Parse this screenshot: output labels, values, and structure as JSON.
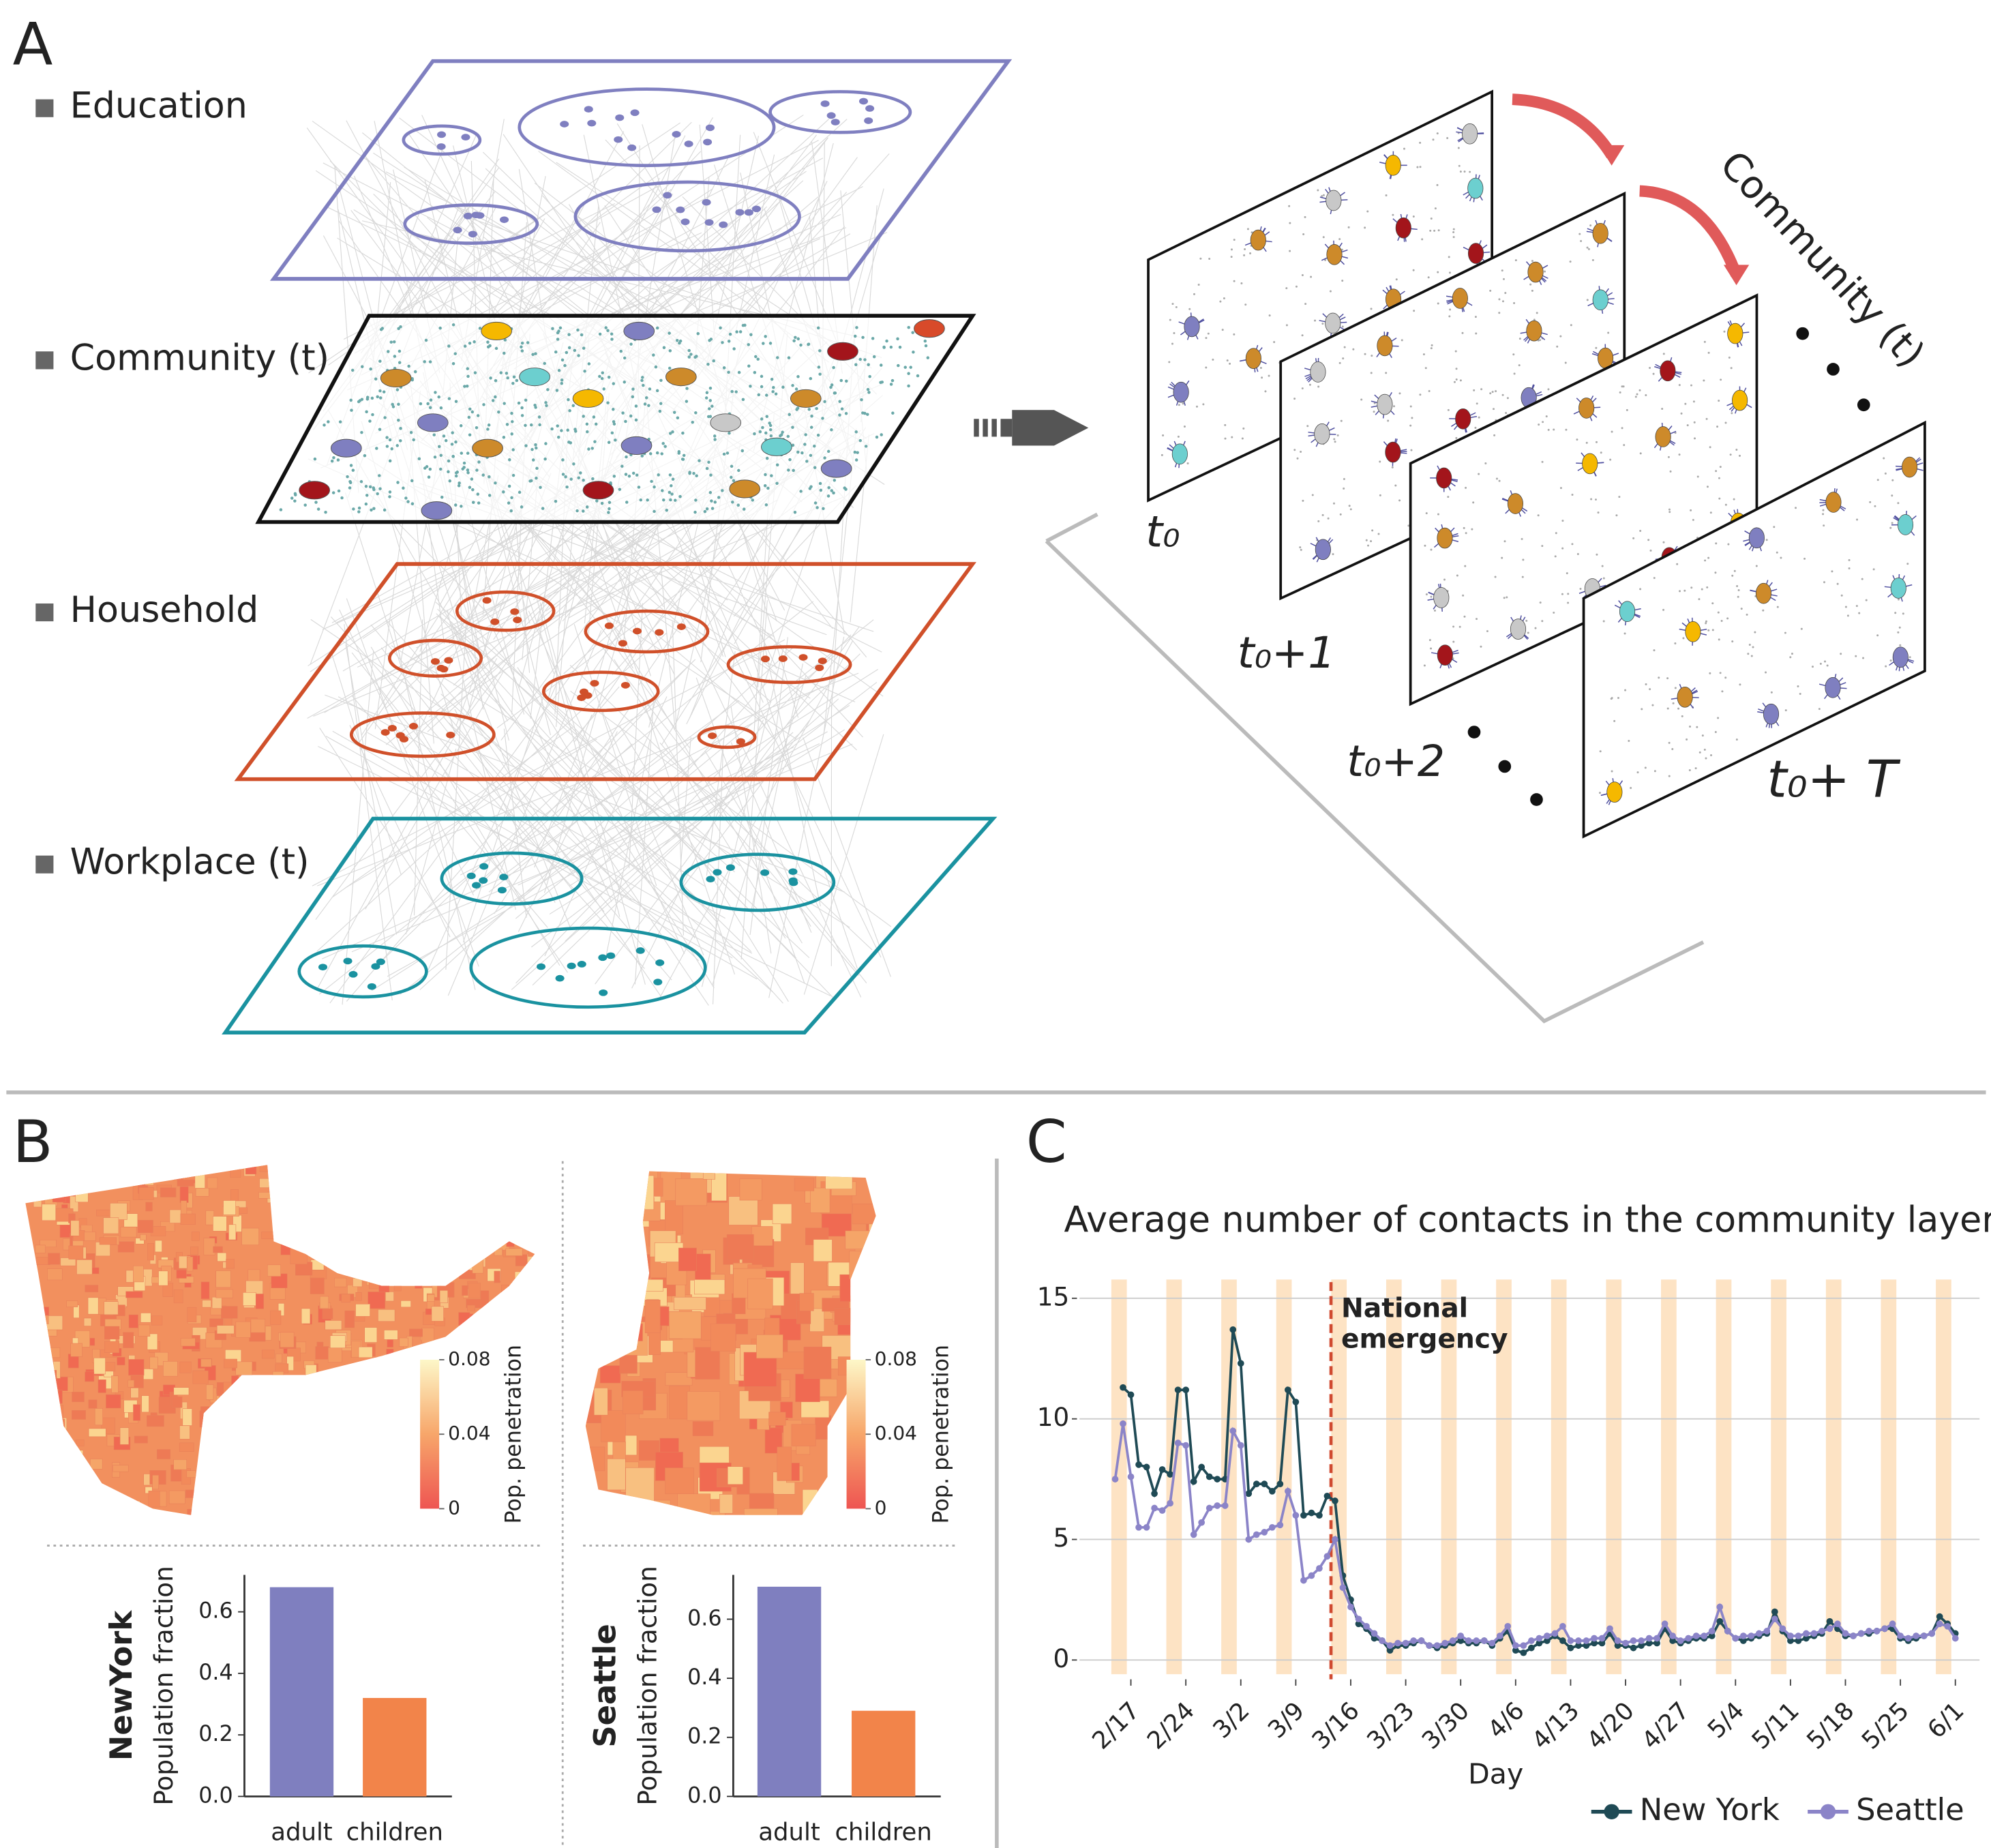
{
  "panels": {
    "a": "A",
    "b": "B",
    "c": "C"
  },
  "layers": [
    "Education",
    "Community (t)",
    "Household",
    "Workplace (t)"
  ],
  "timeline": {
    "title": "Community (t)",
    "frames": [
      "t₀",
      "t₀+1",
      "t₀+2",
      "t₀+ T"
    ]
  },
  "maps": [
    {
      "colorbar_label": "Pop. penetration",
      "range": [
        0,
        0.08
      ],
      "ticks": [
        0,
        0.04,
        0.08
      ]
    },
    {
      "colorbar_label": "Pop. penetration",
      "range": [
        0,
        0.08
      ],
      "ticks": [
        0,
        0.04,
        0.08
      ]
    }
  ],
  "chart_data": [
    {
      "type": "bar",
      "title": "NewYork",
      "ylabel": "Population fraction",
      "categories": [
        "adult",
        "children"
      ],
      "values": [
        0.68,
        0.32
      ],
      "colors": [
        "#7f7fbf",
        "#f2844a"
      ],
      "ylim": [
        0,
        0.72
      ],
      "yticks": [
        {
          "value": 0,
          "label": "0.0"
        },
        0.2,
        0.4,
        0.6
      ]
    },
    {
      "type": "bar",
      "title": "Seattle",
      "ylabel": "Population fraction",
      "categories": [
        "adult",
        "children"
      ],
      "values": [
        0.71,
        0.29
      ],
      "colors": [
        "#7f7fbf",
        "#f2844a"
      ],
      "ylim": [
        0,
        0.75
      ],
      "yticks": [
        {
          "value": 0,
          "label": "0.0"
        },
        0.2,
        0.4,
        0.6
      ]
    },
    {
      "type": "line",
      "title": "Average number of contacts in the community layer",
      "xlabel": "Day",
      "x": [
        "2/15",
        "2/16",
        "2/17",
        "2/18",
        "2/19",
        "2/20",
        "2/21",
        "2/22",
        "2/23",
        "2/24",
        "2/25",
        "2/26",
        "2/27",
        "2/28",
        "2/29",
        "3/1",
        "3/2",
        "3/3",
        "3/4",
        "3/5",
        "3/6",
        "3/7",
        "3/8",
        "3/9",
        "3/10",
        "3/11",
        "3/12",
        "3/13",
        "3/14",
        "3/15",
        "3/16",
        "3/17",
        "3/18",
        "3/19",
        "3/20",
        "3/21",
        "3/22",
        "3/23",
        "3/24",
        "3/25",
        "3/26",
        "3/27",
        "3/28",
        "3/29",
        "3/30",
        "3/31",
        "4/1",
        "4/2",
        "4/3",
        "4/4",
        "4/5",
        "4/6",
        "4/7",
        "4/8",
        "4/9",
        "4/10",
        "4/11",
        "4/12",
        "4/13",
        "4/14",
        "4/15",
        "4/16",
        "4/17",
        "4/18",
        "4/19",
        "4/20",
        "4/21",
        "4/22",
        "4/23",
        "4/24",
        "4/25",
        "4/26",
        "4/27",
        "4/28",
        "4/29",
        "4/30",
        "5/1",
        "5/2",
        "5/3",
        "5/4",
        "5/5",
        "5/6",
        "5/7",
        "5/8",
        "5/9",
        "5/10",
        "5/11",
        "5/12",
        "5/13",
        "5/14",
        "5/15",
        "5/16",
        "5/17",
        "5/18",
        "5/19",
        "5/20",
        "5/21",
        "5/22",
        "5/23",
        "5/24",
        "5/25",
        "5/26",
        "5/27",
        "5/28",
        "5/29",
        "5/30",
        "5/31",
        "6/1"
      ],
      "xticks": [
        "2/17",
        "2/24",
        "3/2",
        "3/9",
        "3/16",
        "3/23",
        "3/30",
        "4/6",
        "4/13",
        "4/20",
        "4/27",
        "5/4",
        "5/11",
        "5/18",
        "5/25",
        "6/1"
      ],
      "ylim": [
        -0.8,
        16.2
      ],
      "yticks": [
        0,
        5,
        10,
        15
      ],
      "grid": true,
      "legend": "bottom-right",
      "annotation": {
        "lines": [
          "National",
          "emergency"
        ],
        "x": "3/13",
        "color": "#d04a30"
      },
      "band_color": "#fde3c4",
      "series": [
        {
          "name": "New York",
          "color": "#1f4a55",
          "values": [
            null,
            11.3,
            11.0,
            8.1,
            8.0,
            6.9,
            7.9,
            7.7,
            11.2,
            11.2,
            7.4,
            8.0,
            7.6,
            7.5,
            7.5,
            13.7,
            12.3,
            6.9,
            7.3,
            7.3,
            7.0,
            7.3,
            11.2,
            10.7,
            6.0,
            6.1,
            6.0,
            6.8,
            6.6,
            3.5,
            2.5,
            1.5,
            1.3,
            0.9,
            0.8,
            0.4,
            0.6,
            0.6,
            0.7,
            0.8,
            0.6,
            0.5,
            0.6,
            0.7,
            0.8,
            0.7,
            0.7,
            0.8,
            0.6,
            0.9,
            1.2,
            0.4,
            0.3,
            0.5,
            0.7,
            0.8,
            1.0,
            0.8,
            0.5,
            0.6,
            0.6,
            0.7,
            0.7,
            1.1,
            0.6,
            0.6,
            0.5,
            0.6,
            0.7,
            0.7,
            1.3,
            0.8,
            0.7,
            0.8,
            0.9,
            0.9,
            1.0,
            1.6,
            1.2,
            0.9,
            0.8,
            0.9,
            1.0,
            1.1,
            2.0,
            1.2,
            0.8,
            0.8,
            0.9,
            1.0,
            1.1,
            1.6,
            1.3,
            1.0,
            1.0,
            1.1,
            1.1,
            1.2,
            1.3,
            1.3,
            0.9,
            0.8,
            0.9,
            1.0,
            1.1,
            1.8,
            1.5,
            1.1
          ]
        },
        {
          "name": "Seattle",
          "color": "#8b84c8",
          "values": [
            7.5,
            9.8,
            7.6,
            5.5,
            5.5,
            6.3,
            6.2,
            6.5,
            9.0,
            8.9,
            5.2,
            5.7,
            6.3,
            6.4,
            6.4,
            9.5,
            8.9,
            5.0,
            5.2,
            5.3,
            5.5,
            5.6,
            7.0,
            6.0,
            3.3,
            3.5,
            3.8,
            4.3,
            5.0,
            3.0,
            2.2,
            1.7,
            1.4,
            1.1,
            0.8,
            0.6,
            0.7,
            0.7,
            0.8,
            0.8,
            0.6,
            0.6,
            0.7,
            0.8,
            1.0,
            0.8,
            0.8,
            0.8,
            0.7,
            1.0,
            1.4,
            0.6,
            0.6,
            0.8,
            0.9,
            1.0,
            1.1,
            1.4,
            0.8,
            0.8,
            0.8,
            0.9,
            0.9,
            1.3,
            0.8,
            0.7,
            0.8,
            0.8,
            0.9,
            0.9,
            1.5,
            1.0,
            0.8,
            0.9,
            1.0,
            1.0,
            1.2,
            2.2,
            1.2,
            0.9,
            1.0,
            1.0,
            1.1,
            1.2,
            1.7,
            1.3,
            1.0,
            1.0,
            1.1,
            1.1,
            1.2,
            1.3,
            1.5,
            1.1,
            1.0,
            1.1,
            1.2,
            1.2,
            1.3,
            1.5,
            1.0,
            0.9,
            1.0,
            1.0,
            1.1,
            1.5,
            1.4,
            0.9
          ]
        }
      ]
    }
  ]
}
